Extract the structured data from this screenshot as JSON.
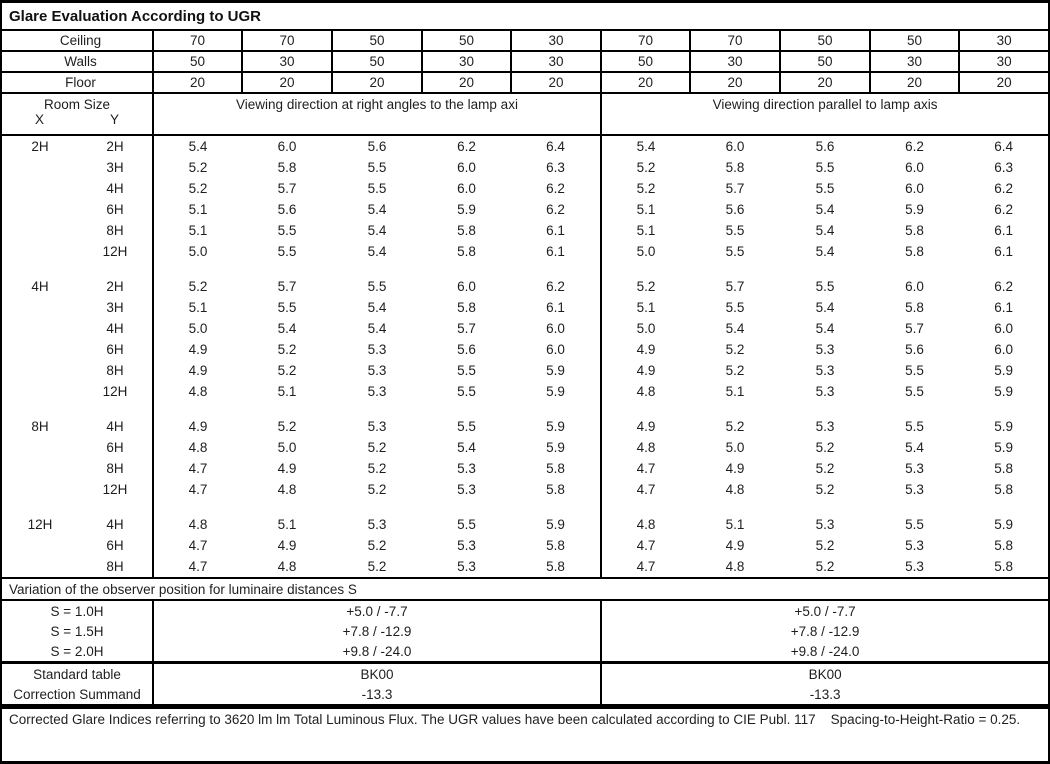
{
  "title": "Glare Evaluation According to UGR",
  "reflectance_rows": [
    {
      "label": "Ceiling",
      "values": [
        "70",
        "70",
        "50",
        "50",
        "30",
        "70",
        "70",
        "50",
        "50",
        "30"
      ]
    },
    {
      "label": "Walls",
      "values": [
        "50",
        "30",
        "50",
        "30",
        "30",
        "50",
        "30",
        "50",
        "30",
        "30"
      ]
    },
    {
      "label": "Floor",
      "values": [
        "20",
        "20",
        "20",
        "20",
        "20",
        "20",
        "20",
        "20",
        "20",
        "20"
      ]
    }
  ],
  "header": {
    "room_size": "Room Size",
    "x": "X",
    "y": "Y",
    "left": "Viewing direction at right angles to the lamp axi",
    "right": "Viewing direction parallel to lamp axis"
  },
  "ugr_groups": [
    {
      "x": "2H",
      "rows": [
        {
          "y": "2H",
          "values": [
            "5.4",
            "6.0",
            "5.6",
            "6.2",
            "6.4",
            "5.4",
            "6.0",
            "5.6",
            "6.2",
            "6.4"
          ]
        },
        {
          "y": "3H",
          "values": [
            "5.2",
            "5.8",
            "5.5",
            "6.0",
            "6.3",
            "5.2",
            "5.8",
            "5.5",
            "6.0",
            "6.3"
          ]
        },
        {
          "y": "4H",
          "values": [
            "5.2",
            "5.7",
            "5.5",
            "6.0",
            "6.2",
            "5.2",
            "5.7",
            "5.5",
            "6.0",
            "6.2"
          ]
        },
        {
          "y": "6H",
          "values": [
            "5.1",
            "5.6",
            "5.4",
            "5.9",
            "6.2",
            "5.1",
            "5.6",
            "5.4",
            "5.9",
            "6.2"
          ]
        },
        {
          "y": "8H",
          "values": [
            "5.1",
            "5.5",
            "5.4",
            "5.8",
            "6.1",
            "5.1",
            "5.5",
            "5.4",
            "5.8",
            "6.1"
          ]
        },
        {
          "y": "12H",
          "values": [
            "5.0",
            "5.5",
            "5.4",
            "5.8",
            "6.1",
            "5.0",
            "5.5",
            "5.4",
            "5.8",
            "6.1"
          ]
        }
      ]
    },
    {
      "x": "4H",
      "rows": [
        {
          "y": "2H",
          "values": [
            "5.2",
            "5.7",
            "5.5",
            "6.0",
            "6.2",
            "5.2",
            "5.7",
            "5.5",
            "6.0",
            "6.2"
          ]
        },
        {
          "y": "3H",
          "values": [
            "5.1",
            "5.5",
            "5.4",
            "5.8",
            "6.1",
            "5.1",
            "5.5",
            "5.4",
            "5.8",
            "6.1"
          ]
        },
        {
          "y": "4H",
          "values": [
            "5.0",
            "5.4",
            "5.4",
            "5.7",
            "6.0",
            "5.0",
            "5.4",
            "5.4",
            "5.7",
            "6.0"
          ]
        },
        {
          "y": "6H",
          "values": [
            "4.9",
            "5.2",
            "5.3",
            "5.6",
            "6.0",
            "4.9",
            "5.2",
            "5.3",
            "5.6",
            "6.0"
          ]
        },
        {
          "y": "8H",
          "values": [
            "4.9",
            "5.2",
            "5.3",
            "5.5",
            "5.9",
            "4.9",
            "5.2",
            "5.3",
            "5.5",
            "5.9"
          ]
        },
        {
          "y": "12H",
          "values": [
            "4.8",
            "5.1",
            "5.3",
            "5.5",
            "5.9",
            "4.8",
            "5.1",
            "5.3",
            "5.5",
            "5.9"
          ]
        }
      ]
    },
    {
      "x": "8H",
      "rows": [
        {
          "y": "4H",
          "values": [
            "4.9",
            "5.2",
            "5.3",
            "5.5",
            "5.9",
            "4.9",
            "5.2",
            "5.3",
            "5.5",
            "5.9"
          ]
        },
        {
          "y": "6H",
          "values": [
            "4.8",
            "5.0",
            "5.2",
            "5.4",
            "5.9",
            "4.8",
            "5.0",
            "5.2",
            "5.4",
            "5.9"
          ]
        },
        {
          "y": "8H",
          "values": [
            "4.7",
            "4.9",
            "5.2",
            "5.3",
            "5.8",
            "4.7",
            "4.9",
            "5.2",
            "5.3",
            "5.8"
          ]
        },
        {
          "y": "12H",
          "values": [
            "4.7",
            "4.8",
            "5.2",
            "5.3",
            "5.8",
            "4.7",
            "4.8",
            "5.2",
            "5.3",
            "5.8"
          ]
        }
      ]
    },
    {
      "x": "12H",
      "rows": [
        {
          "y": "4H",
          "values": [
            "4.8",
            "5.1",
            "5.3",
            "5.5",
            "5.9",
            "4.8",
            "5.1",
            "5.3",
            "5.5",
            "5.9"
          ]
        },
        {
          "y": "6H",
          "values": [
            "4.7",
            "4.9",
            "5.2",
            "5.3",
            "5.8",
            "4.7",
            "4.9",
            "5.2",
            "5.3",
            "5.8"
          ]
        },
        {
          "y": "8H",
          "values": [
            "4.7",
            "4.8",
            "5.2",
            "5.3",
            "5.8",
            "4.7",
            "4.8",
            "5.2",
            "5.3",
            "5.8"
          ]
        }
      ]
    }
  ],
  "variation": {
    "heading": "Variation of the observer position for luminaire distances S",
    "rows": [
      {
        "label": "S = 1.0H",
        "left": "+5.0 / -7.7",
        "right": "+5.0 / -7.7"
      },
      {
        "label": "S = 1.5H",
        "left": "+7.8 / -12.9",
        "right": "+7.8 / -12.9"
      },
      {
        "label": "S = 2.0H",
        "left": "+9.8 / -24.0",
        "right": "+9.8 / -24.0"
      }
    ]
  },
  "summary_rows": [
    {
      "label": "Standard table",
      "left": "BK00",
      "right": "BK00"
    },
    {
      "label": "Correction Summand",
      "left": "-13.3",
      "right": "-13.3"
    }
  ],
  "footer": "Corrected Glare Indices referring to 3620 lm lm Total Luminous Flux. The UGR values have been calculated according to CIE Publ. 117    Spacing-to-Height-Ratio = 0.25.",
  "colors": {
    "border": "#000000",
    "text": "#1e1e1e",
    "background": "#ffffff"
  }
}
